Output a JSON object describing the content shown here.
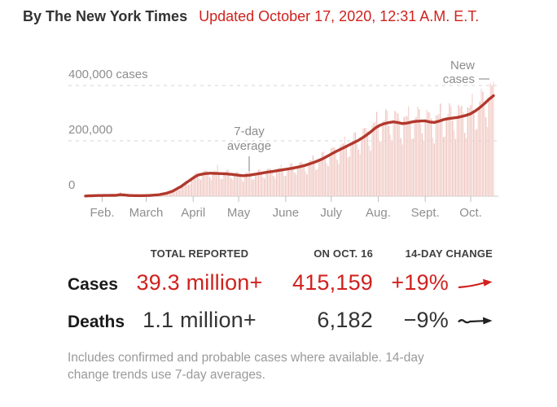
{
  "header": {
    "byline": "By The New York Times",
    "updated": "Updated October 17, 2020, 12:31 A.M. E.T."
  },
  "chart_data": {
    "type": "bar+line",
    "description": "Daily new reported coronavirus cases worldwide with 7-day average line, Jan 21 - Oct 16, 2020",
    "x_axis": {
      "start_label": "Feb.",
      "end_label": "Oct.",
      "month_ticks": [
        {
          "label": "Feb.",
          "day": 11
        },
        {
          "label": "March",
          "day": 40
        },
        {
          "label": "April",
          "day": 71
        },
        {
          "label": "May",
          "day": 101
        },
        {
          "label": "June",
          "day": 132
        },
        {
          "label": "July",
          "day": 162
        },
        {
          "label": "Aug.",
          "day": 193
        },
        {
          "label": "Sept.",
          "day": 224
        },
        {
          "label": "Oct.",
          "day": 254
        }
      ],
      "total_days": 269
    },
    "y_axis": {
      "ticks": [
        {
          "value": 400000,
          "label": "400,000 cases"
        },
        {
          "value": 200000,
          "label": "200,000"
        },
        {
          "value": 0,
          "label": "0"
        }
      ],
      "max": 430000,
      "grid": "dashed"
    },
    "avg_line_anchors": [
      [
        0,
        700
      ],
      [
        8,
        2400
      ],
      [
        14,
        2600
      ],
      [
        20,
        3000
      ],
      [
        23,
        5600
      ],
      [
        25,
        4600
      ],
      [
        29,
        2400
      ],
      [
        36,
        1900
      ],
      [
        42,
        2400
      ],
      [
        48,
        5000
      ],
      [
        53,
        10000
      ],
      [
        57,
        17000
      ],
      [
        60,
        26000
      ],
      [
        63,
        35000
      ],
      [
        66,
        47000
      ],
      [
        69,
        58000
      ],
      [
        71,
        66000
      ],
      [
        74,
        76000
      ],
      [
        78,
        81000
      ],
      [
        82,
        83000
      ],
      [
        87,
        82000
      ],
      [
        92,
        81000
      ],
      [
        97,
        78500
      ],
      [
        101,
        75500
      ],
      [
        104,
        74000
      ],
      [
        108,
        76000
      ],
      [
        112,
        79500
      ],
      [
        116,
        83000
      ],
      [
        120,
        87000
      ],
      [
        124,
        90000
      ],
      [
        128,
        93500
      ],
      [
        132,
        97000
      ],
      [
        136,
        100500
      ],
      [
        140,
        105000
      ],
      [
        144,
        110000
      ],
      [
        148,
        117000
      ],
      [
        152,
        125000
      ],
      [
        156,
        134000
      ],
      [
        160,
        146000
      ],
      [
        164,
        158000
      ],
      [
        168,
        169000
      ],
      [
        172,
        180000
      ],
      [
        176,
        191000
      ],
      [
        180,
        202000
      ],
      [
        184,
        216000
      ],
      [
        188,
        232000
      ],
      [
        191,
        246000
      ],
      [
        194,
        256000
      ],
      [
        197,
        262000
      ],
      [
        200,
        266000
      ],
      [
        203,
        268500
      ],
      [
        206,
        266000
      ],
      [
        209,
        262500
      ],
      [
        212,
        264000
      ],
      [
        215,
        268000
      ],
      [
        218,
        270500
      ],
      [
        221,
        271500
      ],
      [
        224,
        272000
      ],
      [
        227,
        268000
      ],
      [
        230,
        266500
      ],
      [
        233,
        271000
      ],
      [
        236,
        276500
      ],
      [
        239,
        280000
      ],
      [
        242,
        282000
      ],
      [
        245,
        284500
      ],
      [
        248,
        288000
      ],
      [
        251,
        292000
      ],
      [
        254,
        298000
      ],
      [
        257,
        308000
      ],
      [
        260,
        320000
      ],
      [
        263,
        334000
      ],
      [
        266,
        350000
      ],
      [
        269,
        363000
      ]
    ],
    "bars": {
      "weekly_pattern": [
        1.04,
        1.1,
        1.14,
        1.17,
        1.0,
        0.8,
        0.74
      ],
      "wobble_amp": 0.05,
      "wobble_freq": 2.1,
      "spikes": {
        "23": 15200,
        "87": 113000
      }
    },
    "annotations": {
      "avg_label_lines": [
        "7-day",
        "average"
      ],
      "new_cases_lines": [
        "New",
        "cases"
      ]
    },
    "colors": {
      "bar": "#efc7c2",
      "bar_alt": "#f5d9d5",
      "line": "#b2382c",
      "grid": "#d4d4d4",
      "zero_line": "#c8c8c8",
      "tick": "#bfbfbf",
      "axis_text": "#8e8e8e",
      "annotation_text": "#8c8c8c",
      "pointer": "#a8a8a8"
    }
  },
  "table": {
    "headers": {
      "total": "TOTAL REPORTED",
      "on_date": "ON OCT. 16",
      "change": "14-DAY CHANGE"
    },
    "rows": [
      {
        "label": "Cases",
        "total": "39.3 million+",
        "on_date": "415,159",
        "change": "+19%",
        "trend": "up",
        "color": "#d0221e"
      },
      {
        "label": "Deaths",
        "total": "1.1 million+",
        "on_date": "6,182",
        "change": "−9%",
        "trend": "flat",
        "color": "#333333"
      }
    ]
  },
  "footnote": {
    "lines": [
      "Includes confirmed and probable cases where available. 14-day",
      "change trends use 7-day averages."
    ]
  },
  "accent_red": "#d0221e"
}
